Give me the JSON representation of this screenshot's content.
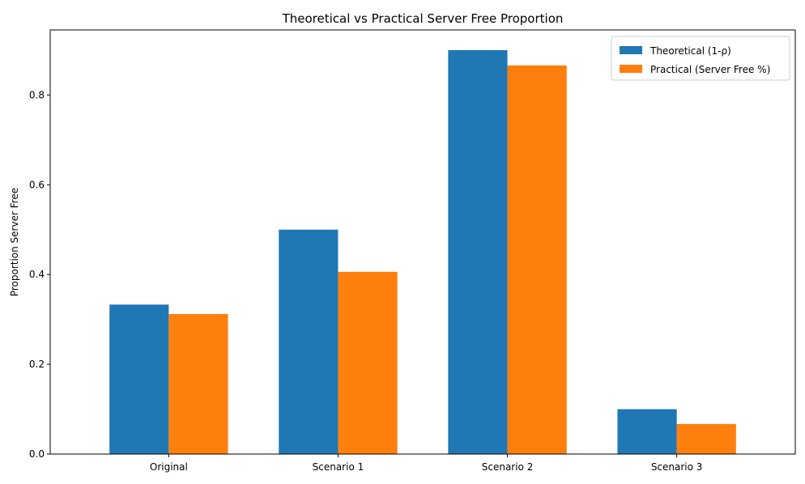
{
  "chart_data": {
    "type": "bar",
    "title": "Theoretical vs Practical Server Free Proportion",
    "xlabel": "",
    "ylabel": "Proportion Server Free",
    "categories": [
      "Original",
      "Scenario 1",
      "Scenario 2",
      "Scenario 3"
    ],
    "series": [
      {
        "name": "Theoretical (1-ρ)",
        "color": "#1f77b4",
        "values": [
          0.333,
          0.5,
          0.9,
          0.1
        ]
      },
      {
        "name": "Practical (Server Free %)",
        "color": "#ff7f0e",
        "values": [
          0.312,
          0.406,
          0.866,
          0.067
        ]
      }
    ],
    "ylim": [
      0,
      0.945
    ],
    "yticks": [
      "0.0",
      "0.2",
      "0.4",
      "0.6",
      "0.8"
    ],
    "ytick_values": [
      0.0,
      0.2,
      0.4,
      0.6,
      0.8
    ],
    "grid": false,
    "legend_position": "top-right"
  }
}
